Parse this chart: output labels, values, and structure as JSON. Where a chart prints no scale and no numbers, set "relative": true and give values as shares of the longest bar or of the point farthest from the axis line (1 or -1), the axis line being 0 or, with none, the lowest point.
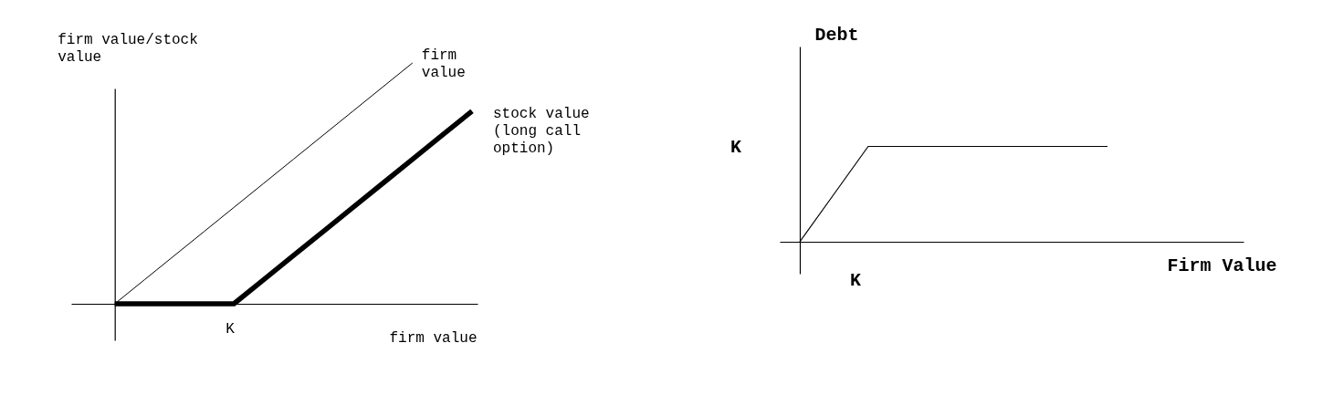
{
  "chart_data": [
    {
      "type": "line",
      "relative": true,
      "ylabel": "firm value/stock value",
      "xlabel": "firm value",
      "annotations": [
        "K"
      ],
      "categories": [
        null,
        null,
        null,
        null,
        null,
        null,
        null,
        null,
        null,
        null,
        null,
        null,
        null
      ],
      "series": [
        {
          "name": "firm value",
          "color": "#000000",
          "values": [
            0,
            0.1,
            0.2,
            0.3,
            0.4,
            0.5,
            0.6,
            0.7,
            0.8,
            0.9,
            1,
            null,
            null
          ]
        },
        {
          "name": "stock value (long call option)",
          "color": "#000000",
          "values": [
            0,
            0,
            0,
            0,
            0,
            0.1,
            0.2,
            0.3,
            0.4,
            0.5,
            0.6,
            0.7,
            0.8
          ]
        }
      ]
    },
    {
      "type": "line",
      "relative": true,
      "ylabel": "Debt",
      "xlabel": "Firm Value",
      "annotations": [
        "K",
        "K"
      ],
      "categories": [
        null,
        null,
        null,
        null,
        null,
        null,
        null,
        null,
        null,
        null
      ],
      "color": "#000000",
      "values": [
        0,
        0.5,
        1,
        1,
        1,
        1,
        1,
        1,
        1,
        1
      ]
    }
  ]
}
